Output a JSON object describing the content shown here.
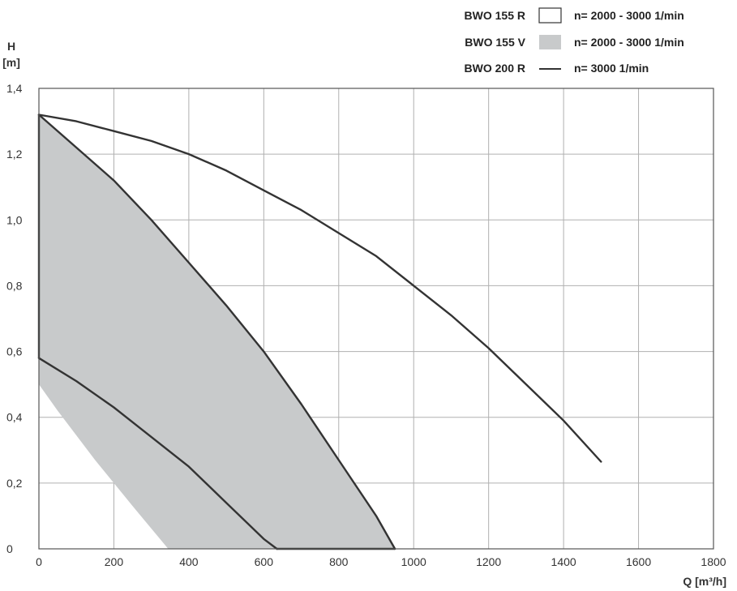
{
  "chart_data": {
    "type": "line",
    "title": "",
    "ylabel": "H",
    "yunit": "[m]",
    "xlabel": "Q [m³/h]",
    "xlim": [
      0,
      1800
    ],
    "ylim": [
      0,
      1.4
    ],
    "grid": true,
    "legend_position": "top-right",
    "x_ticks": [
      0,
      200,
      400,
      600,
      800,
      1000,
      1200,
      1400,
      1600,
      1800
    ],
    "x_tick_labels": [
      "0",
      "200",
      "400",
      "600",
      "800",
      "1000",
      "1200",
      "1400",
      "1600",
      "1800"
    ],
    "y_ticks": [
      0,
      0.2,
      0.4,
      0.6,
      0.8,
      1.0,
      1.2,
      1.4
    ],
    "y_tick_labels": [
      "0",
      "0,2",
      "0,4",
      "0,6",
      "0,8",
      "1,0",
      "1,2",
      "1,4"
    ],
    "legend": [
      {
        "name": "BWO 155 R",
        "symbol": "outlined-box",
        "speed": "n= 2000 - 3000 1/min"
      },
      {
        "name": "BWO 155 V",
        "symbol": "filled-box",
        "speed": "n= 2000 - 3000 1/min"
      },
      {
        "name": "BWO 200 R",
        "symbol": "line",
        "speed": "n= 3000 1/min"
      }
    ],
    "series": [
      {
        "name": "BWO 155 V",
        "kind": "area",
        "color": "#c8cacb",
        "x": [
          0,
          100,
          200,
          300,
          400,
          500,
          600,
          700,
          800,
          900,
          950,
          345,
          250,
          150,
          50,
          0
        ],
        "y": [
          1.32,
          1.22,
          1.12,
          1.0,
          0.87,
          0.74,
          0.6,
          0.44,
          0.27,
          0.1,
          0.0,
          0.0,
          0.13,
          0.27,
          0.42,
          0.5
        ]
      },
      {
        "name": "BWO 155 V",
        "kind": "line",
        "color": "#333333",
        "x": [
          0,
          100,
          200,
          300,
          400,
          500,
          600,
          700,
          800,
          900,
          950
        ],
        "y": [
          1.32,
          1.22,
          1.12,
          1.0,
          0.87,
          0.74,
          0.6,
          0.44,
          0.27,
          0.1,
          0.0
        ]
      },
      {
        "name": "BWO 155 R",
        "kind": "line",
        "color": "#333333",
        "x": [
          0,
          100,
          200,
          300,
          400,
          500,
          600,
          635
        ],
        "y": [
          0.58,
          0.51,
          0.43,
          0.34,
          0.25,
          0.14,
          0.03,
          0.0
        ]
      },
      {
        "name": "BWO 200 R",
        "kind": "line",
        "color": "#333333",
        "x": [
          0,
          100,
          200,
          300,
          400,
          500,
          600,
          700,
          800,
          900,
          1000,
          1100,
          1200,
          1300,
          1400,
          1500
        ],
        "y": [
          1.32,
          1.3,
          1.27,
          1.24,
          1.2,
          1.15,
          1.09,
          1.03,
          0.96,
          0.89,
          0.8,
          0.71,
          0.61,
          0.5,
          0.39,
          0.265
        ]
      },
      {
        "name": "vertical edge",
        "kind": "line",
        "color": "#333333",
        "x": [
          0,
          0
        ],
        "y": [
          0.58,
          1.32
        ]
      },
      {
        "name": "baseline",
        "kind": "line",
        "color": "#333333",
        "x": [
          635,
          950
        ],
        "y": [
          0.0,
          0.0
        ]
      }
    ]
  }
}
